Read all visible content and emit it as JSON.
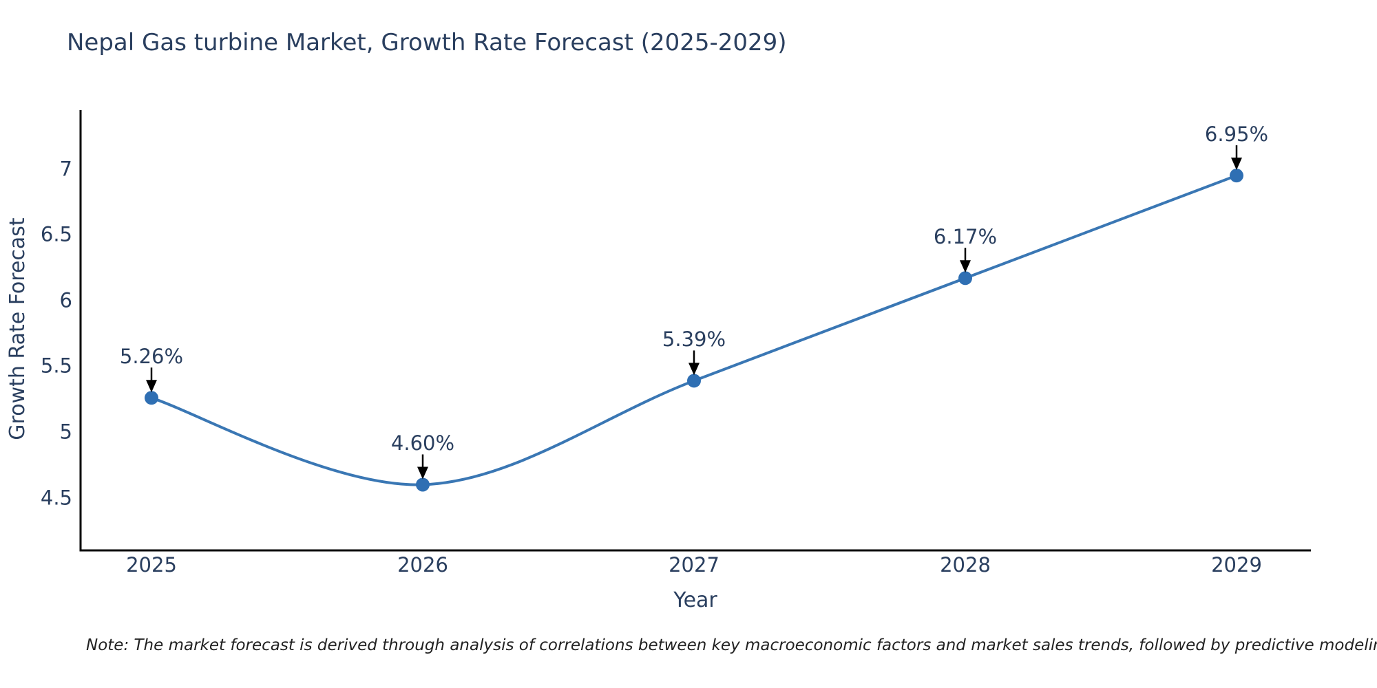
{
  "chart_data": {
    "type": "line",
    "line_shape": "spline",
    "title": "Nepal Gas turbine Market, Growth Rate Forecast (2025-2029)",
    "xlabel": "Year",
    "ylabel": "Growth Rate Forecast",
    "categories": [
      "2025",
      "2026",
      "2027",
      "2028",
      "2029"
    ],
    "series": [
      {
        "name": "Growth Rate Forecast",
        "values": [
          5.26,
          4.6,
          5.39,
          6.17,
          6.95
        ],
        "point_labels": [
          "5.26%",
          "4.60%",
          "5.39%",
          "6.17%",
          "6.95%"
        ]
      }
    ],
    "ytick_labels": [
      "4.5",
      "5",
      "5.5",
      "6",
      "6.5",
      "7"
    ],
    "ytick_values": [
      4.5,
      5,
      5.5,
      6,
      6.5,
      7
    ],
    "ylim": [
      4.1,
      7.45
    ],
    "grid": false,
    "legend_position": "none",
    "annotation_style": "value label with black down-arrow pointing at marker",
    "colors": {
      "line": "#3a77b4",
      "marker": "#2f6fb3",
      "axis_line": "#000000",
      "text": "#2a3f5f",
      "annotation_arrow": "#000000",
      "note_text": "#222222",
      "background": "#ffffff"
    }
  },
  "footer": {
    "note": "Note: The market forecast is derived through analysis of correlations between key macroeconomic factors and market sales trends, followed by predictive modeling to project future sales"
  }
}
